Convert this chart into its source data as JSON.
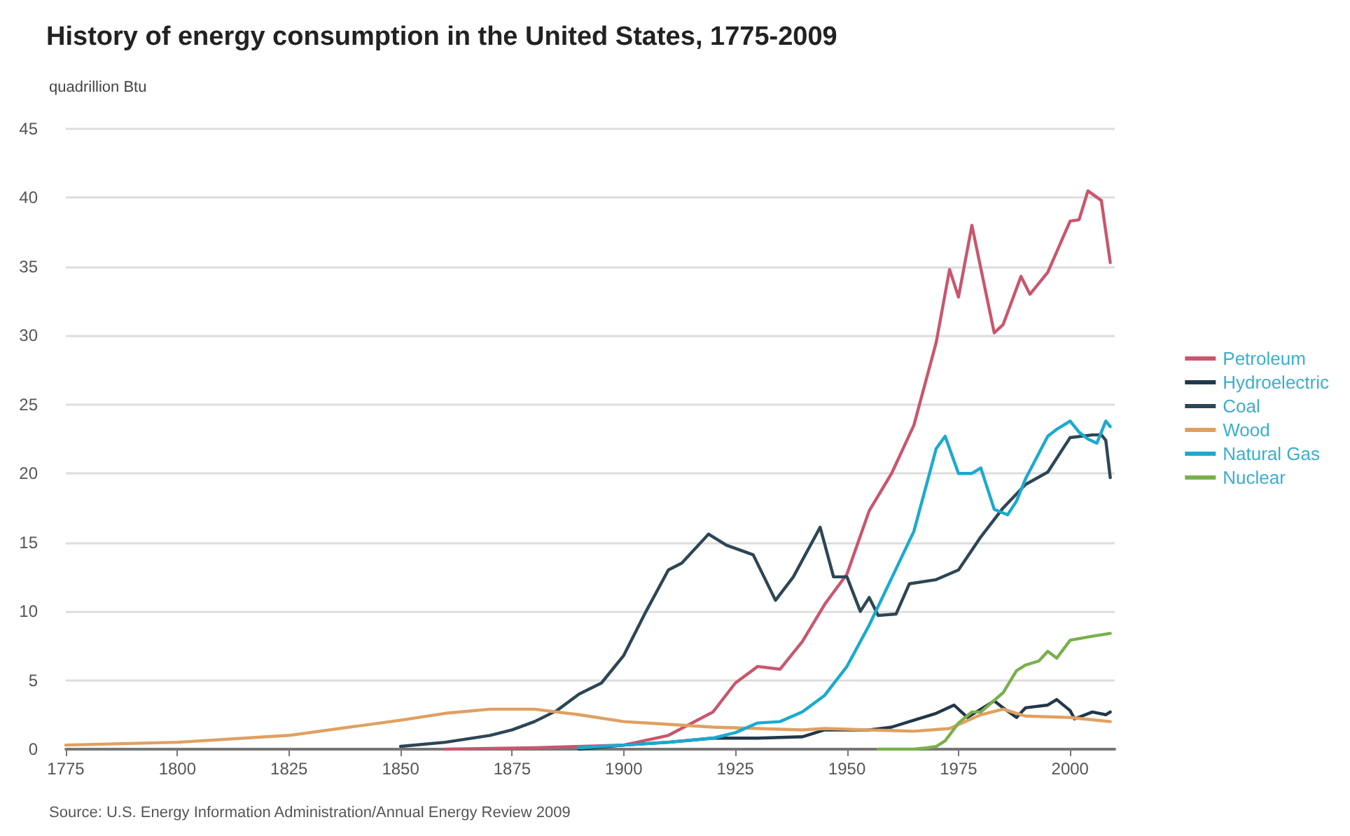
{
  "chart_data": {
    "type": "line",
    "title": "History of energy consumption in the United States, 1775-2009",
    "ylabel": "quadrillion Btu",
    "annotations": [
      "Source: U.S. Energy Information Administration/Annual Energy Review 2009"
    ],
    "xlim": [
      1775,
      2010
    ],
    "xticks": [
      1775,
      1800,
      1825,
      1850,
      1875,
      1900,
      1925,
      1950,
      1975,
      2000
    ],
    "ylim": [
      0,
      45
    ],
    "yticks": [
      0,
      5,
      10,
      15,
      20,
      25,
      30,
      35,
      40,
      45
    ],
    "grid": "y",
    "legend": "right",
    "marker": "none",
    "line_style": "solid",
    "series": [
      {
        "name": "Petroleum",
        "color": "#c9566e",
        "x": [
          1860,
          1880,
          1900,
          1910,
          1920,
          1925,
          1930,
          1935,
          1940,
          1945,
          1950,
          1955,
          1960,
          1965,
          1970,
          1973,
          1975,
          1978,
          1983,
          1985,
          1989,
          1991,
          1995,
          2000,
          2002,
          2004,
          2007,
          2009
        ],
        "values": [
          0,
          0.1,
          0.3,
          1.0,
          2.7,
          4.8,
          6.0,
          5.8,
          7.8,
          10.5,
          12.7,
          17.3,
          20.0,
          23.5,
          29.5,
          34.8,
          32.8,
          38.0,
          30.2,
          30.8,
          34.3,
          33.0,
          34.6,
          38.3,
          38.4,
          40.5,
          39.8,
          35.3
        ]
      },
      {
        "name": "Hydroelectric",
        "color": "#22384a",
        "x": [
          1890,
          1900,
          1910,
          1920,
          1930,
          1940,
          1945,
          1950,
          1955,
          1960,
          1965,
          1970,
          1974,
          1977,
          1980,
          1983,
          1985,
          1988,
          1990,
          1995,
          1997,
          2000,
          2001,
          2005,
          2008,
          2009
        ],
        "values": [
          0,
          0.3,
          0.5,
          0.8,
          0.8,
          0.9,
          1.4,
          1.4,
          1.4,
          1.6,
          2.1,
          2.6,
          3.2,
          2.3,
          2.9,
          3.5,
          3.0,
          2.3,
          3.0,
          3.2,
          3.6,
          2.8,
          2.2,
          2.7,
          2.5,
          2.7
        ]
      },
      {
        "name": "Coal",
        "color": "#2c4655",
        "x": [
          1850,
          1860,
          1870,
          1875,
          1880,
          1885,
          1890,
          1895,
          1900,
          1905,
          1910,
          1913,
          1919,
          1923,
          1929,
          1934,
          1938,
          1944,
          1947,
          1950,
          1953,
          1955,
          1957,
          1961,
          1964,
          1970,
          1975,
          1980,
          1985,
          1990,
          1995,
          2000,
          2005,
          2007,
          2008,
          2009
        ],
        "values": [
          0.2,
          0.5,
          1.0,
          1.4,
          2.0,
          2.8,
          4.0,
          4.8,
          6.8,
          10.0,
          13.0,
          13.5,
          15.6,
          14.8,
          14.1,
          10.8,
          12.5,
          16.1,
          12.5,
          12.5,
          10.0,
          11.0,
          9.7,
          9.8,
          12.0,
          12.3,
          13.0,
          15.4,
          17.5,
          19.2,
          20.1,
          22.6,
          22.8,
          22.8,
          22.4,
          19.7
        ]
      },
      {
        "name": "Wood",
        "color": "#e0a060",
        "x": [
          1775,
          1800,
          1825,
          1850,
          1860,
          1870,
          1880,
          1890,
          1900,
          1910,
          1920,
          1930,
          1940,
          1945,
          1955,
          1965,
          1973,
          1980,
          1985,
          1990,
          2000,
          2009
        ],
        "values": [
          0.3,
          0.5,
          1.0,
          2.1,
          2.6,
          2.9,
          2.9,
          2.5,
          2.0,
          1.8,
          1.6,
          1.5,
          1.4,
          1.5,
          1.4,
          1.3,
          1.5,
          2.5,
          2.9,
          2.4,
          2.3,
          2.0
        ]
      },
      {
        "name": "Natural Gas",
        "color": "#1aaad0",
        "x": [
          1890,
          1900,
          1910,
          1920,
          1925,
          1930,
          1935,
          1940,
          1945,
          1950,
          1955,
          1960,
          1965,
          1970,
          1972,
          1975,
          1978,
          1980,
          1983,
          1986,
          1988,
          1990,
          1995,
          1997,
          2000,
          2002,
          2004,
          2006,
          2008,
          2009
        ],
        "values": [
          0.1,
          0.3,
          0.5,
          0.8,
          1.2,
          1.9,
          2.0,
          2.7,
          3.9,
          6.0,
          9.0,
          12.4,
          15.8,
          21.8,
          22.7,
          20.0,
          20.0,
          20.4,
          17.4,
          17.0,
          18.0,
          19.6,
          22.7,
          23.2,
          23.8,
          23.0,
          22.5,
          22.2,
          23.8,
          23.4
        ]
      },
      {
        "name": "Nuclear",
        "color": "#7ab04a",
        "x": [
          1957,
          1965,
          1968,
          1970,
          1972,
          1975,
          1978,
          1980,
          1985,
          1988,
          1990,
          1993,
          1995,
          1997,
          2000,
          2005,
          2009
        ],
        "values": [
          0,
          0,
          0.1,
          0.2,
          0.6,
          1.9,
          2.7,
          2.7,
          4.1,
          5.7,
          6.1,
          6.4,
          7.1,
          6.6,
          7.9,
          8.2,
          8.4
        ]
      }
    ]
  }
}
